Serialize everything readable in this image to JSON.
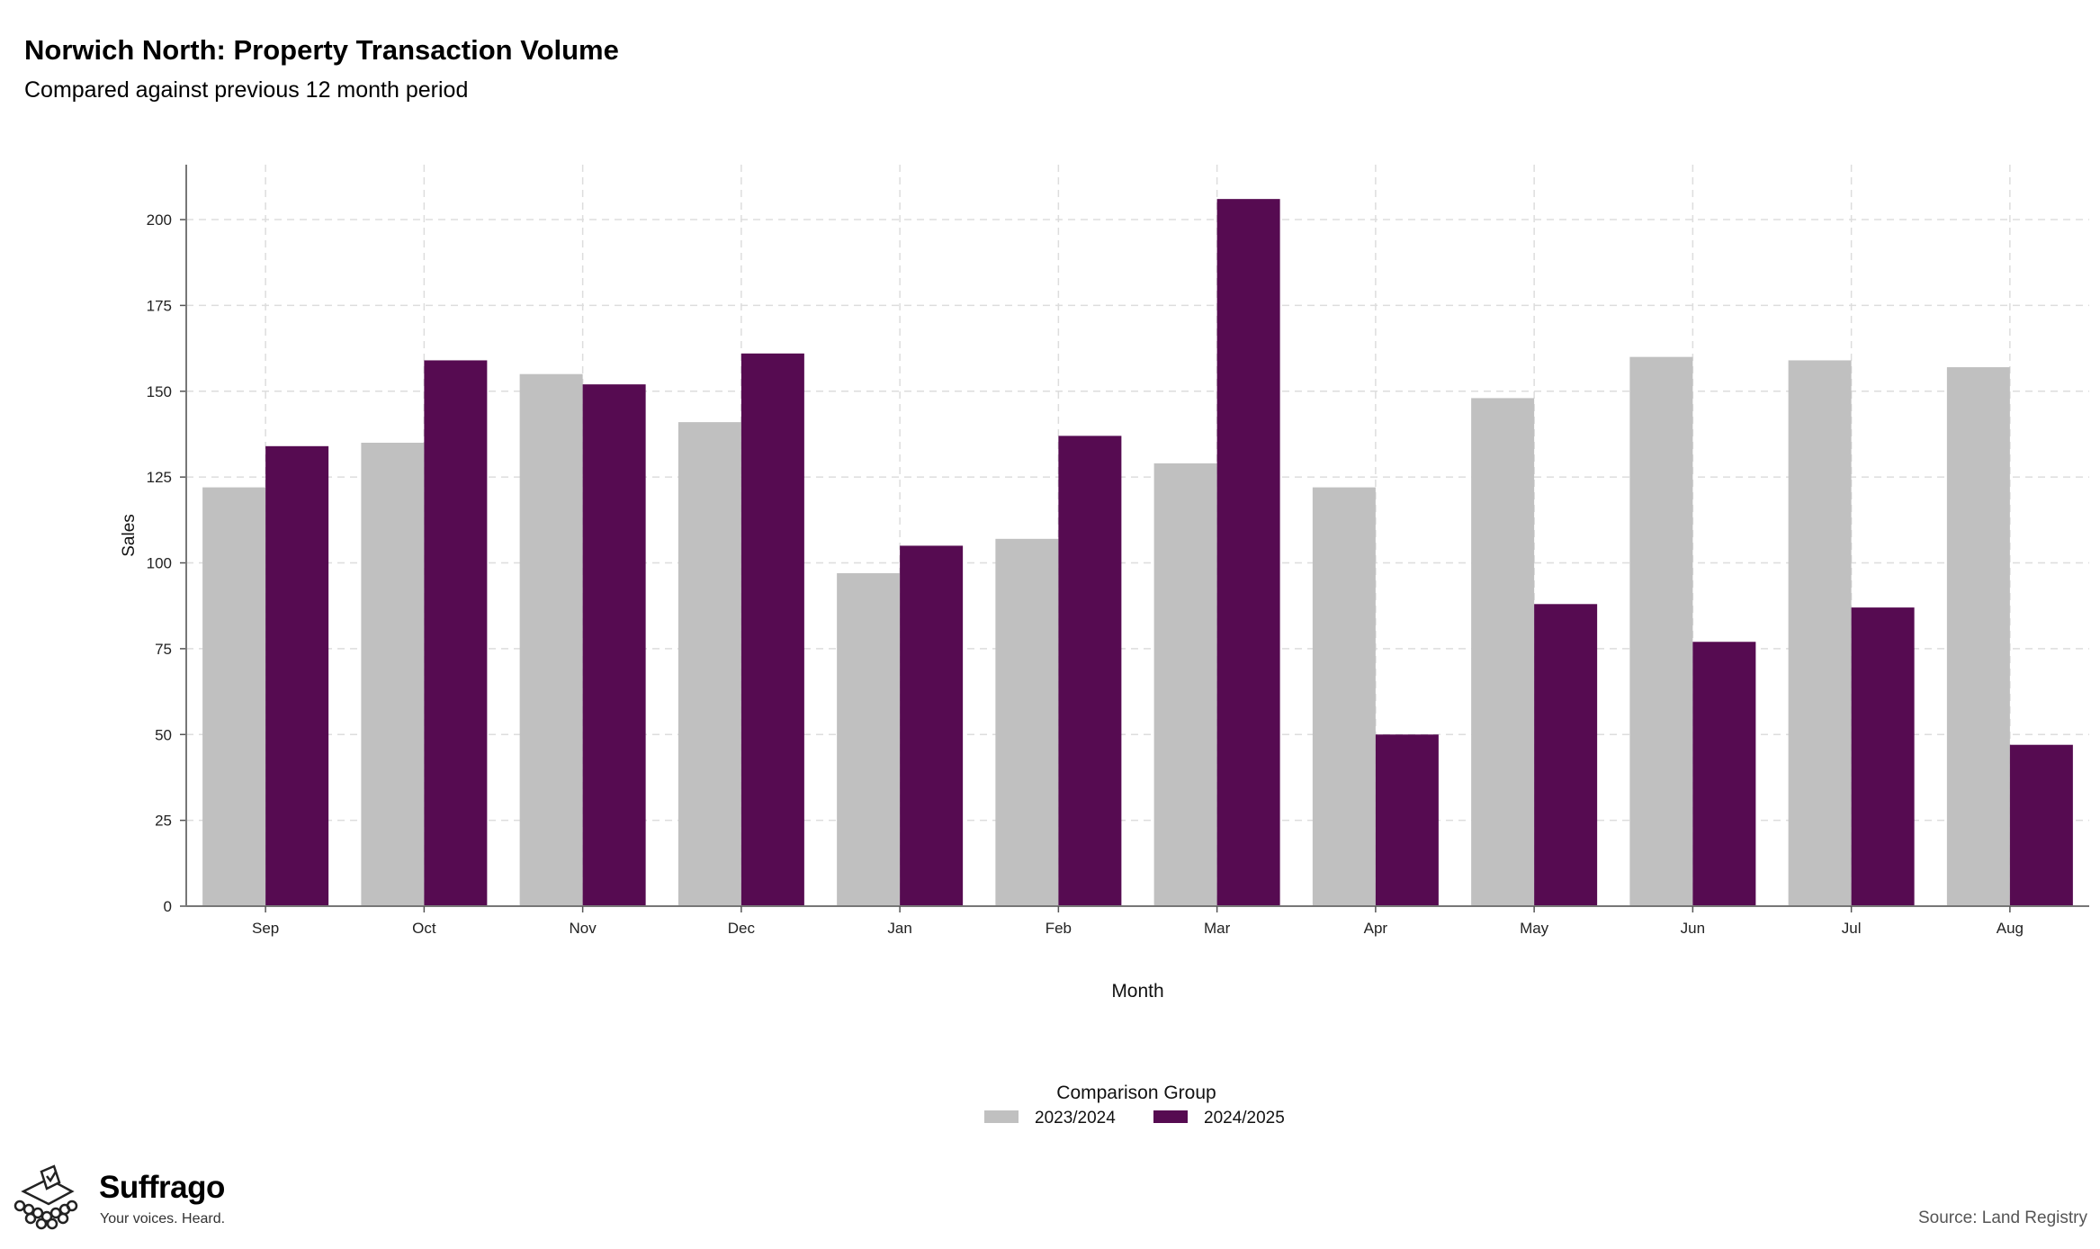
{
  "header": {
    "title": "Norwich North: Property Transaction Volume",
    "subtitle": "Compared against previous 12 month period"
  },
  "footer": {
    "brand_name": "Suffrago",
    "brand_tagline": "Your voices. Heard.",
    "source": "Source: Land Registry"
  },
  "chart_data": {
    "type": "bar",
    "title": "Norwich North: Property Transaction Volume",
    "subtitle": "Compared against previous 12 month period",
    "xlabel": "Month",
    "ylabel": "Sales",
    "categories": [
      "Sep",
      "Oct",
      "Nov",
      "Dec",
      "Jan",
      "Feb",
      "Mar",
      "Apr",
      "May",
      "Jun",
      "Jul",
      "Aug"
    ],
    "series": [
      {
        "name": "2023/2024",
        "color": "#c0c0c0",
        "values": [
          122,
          135,
          155,
          141,
          97,
          107,
          129,
          122,
          148,
          160,
          159,
          157
        ]
      },
      {
        "name": "2024/2025",
        "color": "#560b51",
        "values": [
          134,
          159,
          152,
          161,
          105,
          137,
          206,
          50,
          88,
          77,
          87,
          47
        ]
      }
    ],
    "ylim": [
      0,
      216
    ],
    "yticks": [
      0,
      25,
      50,
      75,
      100,
      125,
      150,
      175,
      200
    ],
    "grid": true,
    "legend": {
      "title": "Comparison Group",
      "position": "bottom"
    }
  }
}
